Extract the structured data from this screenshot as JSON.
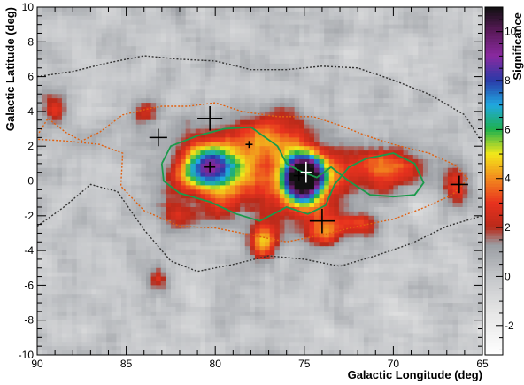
{
  "chart_data": {
    "type": "heatmap",
    "title": "",
    "xlabel": "Galactic Longitude (deg)",
    "ylabel": "Galactic Latitude (deg)",
    "colorbar_label": "Significance",
    "x_axis": {
      "min": 65,
      "max": 90,
      "reversed": true,
      "major_ticks": [
        90,
        85,
        80,
        75,
        70,
        65
      ],
      "tick_labels": [
        "90",
        "85",
        "80",
        "75",
        "70",
        "65"
      ]
    },
    "y_axis": {
      "min": -10,
      "max": 10,
      "major_ticks": [
        -10,
        -8,
        -6,
        -4,
        -2,
        0,
        2,
        4,
        6,
        8,
        10
      ],
      "tick_labels": [
        "-10",
        "-8",
        "-6",
        "-4",
        "-2",
        "0",
        "2",
        "4",
        "6",
        "8",
        "10"
      ]
    },
    "colorbar": {
      "min": -3.2,
      "max": 11,
      "ticks": [
        -2,
        0,
        2,
        4,
        6,
        8,
        10
      ],
      "tick_labels": [
        "-2",
        "0",
        "2",
        "4",
        "6",
        "8",
        "10"
      ]
    },
    "colormap_stops": [
      {
        "v": -3.2,
        "color": "#ffffff"
      },
      {
        "v": -1.5,
        "color": "#e6e6e6"
      },
      {
        "v": 0.0,
        "color": "#c4c6c9"
      },
      {
        "v": 1.3,
        "color": "#9a9da2"
      },
      {
        "v": 2.0,
        "color": "#b82a1a"
      },
      {
        "v": 3.0,
        "color": "#e8321e"
      },
      {
        "v": 4.0,
        "color": "#f28a1e"
      },
      {
        "v": 5.0,
        "color": "#f3e81a"
      },
      {
        "v": 6.0,
        "color": "#1fb14e"
      },
      {
        "v": 7.0,
        "color": "#20a8e0"
      },
      {
        "v": 8.0,
        "color": "#2a3aa8"
      },
      {
        "v": 9.0,
        "color": "#8a2aa0"
      },
      {
        "v": 10.0,
        "color": "#5a1a5a"
      },
      {
        "v": 11.0,
        "color": "#101010"
      }
    ],
    "sources": [
      {
        "name": "central",
        "l": 75.0,
        "b": 0.2,
        "peak": 10.8,
        "sigma_l": 0.75,
        "sigma_b": 0.9
      },
      {
        "name": "central-halo",
        "l": 75.2,
        "b": -0.2,
        "peak": 3.5,
        "sigma_l": 2.2,
        "sigma_b": 1.8
      },
      {
        "name": "west",
        "l": 80.3,
        "b": 0.8,
        "peak": 6.0,
        "sigma_l": 1.1,
        "sigma_b": 0.9
      },
      {
        "name": "west-halo",
        "l": 80.0,
        "b": 0.5,
        "peak": 3.0,
        "sigma_l": 2.0,
        "sigma_b": 1.7
      },
      {
        "name": "north-arm",
        "l": 77.0,
        "b": 2.5,
        "peak": 3.0,
        "sigma_l": 1.2,
        "sigma_b": 1.0
      },
      {
        "name": "east",
        "l": 70.2,
        "b": 0.8,
        "peak": 3.4,
        "sigma_l": 1.6,
        "sigma_b": 0.9
      },
      {
        "name": "south-spur",
        "l": 77.3,
        "b": -3.5,
        "peak": 4.0,
        "sigma_l": 0.55,
        "sigma_b": 0.8
      },
      {
        "name": "south-east",
        "l": 74.0,
        "b": -3.0,
        "peak": 3.0,
        "sigma_l": 0.7,
        "sigma_b": 0.6
      },
      {
        "name": "far-east",
        "l": 66.5,
        "b": -0.3,
        "peak": 3.0,
        "sigma_l": 0.6,
        "sigma_b": 0.8
      },
      {
        "name": "far-west",
        "l": 89.0,
        "b": 4.2,
        "peak": 2.8,
        "sigma_l": 0.5,
        "sigma_b": 0.7
      },
      {
        "name": "north-west",
        "l": 84.0,
        "b": 4.0,
        "peak": 2.5,
        "sigma_l": 0.5,
        "sigma_b": 0.5
      },
      {
        "name": "south-west",
        "l": 83.2,
        "b": -5.5,
        "peak": 2.5,
        "sigma_l": 0.4,
        "sigma_b": 0.5
      },
      {
        "name": "east-low",
        "l": 72.0,
        "b": -2.5,
        "peak": 2.6,
        "sigma_l": 0.9,
        "sigma_b": 0.5
      },
      {
        "name": "west-low",
        "l": 82.0,
        "b": -2.0,
        "peak": 2.4,
        "sigma_l": 0.8,
        "sigma_b": 0.5
      }
    ],
    "crosses": [
      {
        "l": 80.3,
        "b": 3.6,
        "dl": 0.7,
        "db": 0.7,
        "color": "#000000"
      },
      {
        "l": 83.2,
        "b": 2.5,
        "dl": 0.5,
        "db": 0.5,
        "color": "#000000"
      },
      {
        "l": 78.1,
        "b": 2.1,
        "dl": 0.2,
        "db": 0.2,
        "color": "#000000"
      },
      {
        "l": 80.3,
        "b": 0.8,
        "dl": 0.3,
        "db": 0.3,
        "color": "#000000"
      },
      {
        "l": 74.9,
        "b": 0.5,
        "dl": 0.3,
        "db": 0.6,
        "color": "#ffffff"
      },
      {
        "l": 75.3,
        "b": 0.3,
        "dl": 0.3,
        "db": 0.3,
        "color": "#000000"
      },
      {
        "l": 74.0,
        "b": -2.3,
        "dl": 0.7,
        "db": 0.7,
        "color": "#000000"
      },
      {
        "l": 66.3,
        "b": -0.2,
        "dl": 0.5,
        "db": 0.5,
        "color": "#000000"
      }
    ],
    "contours": [
      {
        "name": "black-dotted-outer",
        "color": "#333333",
        "dash": "2,2",
        "points": [
          [
            90,
            6.0
          ],
          [
            88,
            6.3
          ],
          [
            86,
            6.8
          ],
          [
            84,
            7.2
          ],
          [
            82,
            7.0
          ],
          [
            80,
            6.9
          ],
          [
            78,
            6.4
          ],
          [
            76,
            6.4
          ],
          [
            74,
            6.6
          ],
          [
            72,
            6.5
          ],
          [
            70,
            5.8
          ],
          [
            68,
            5.0
          ],
          [
            66,
            3.8
          ],
          [
            65,
            2.2
          ]
        ]
      },
      {
        "name": "black-dotted-inner",
        "color": "#333333",
        "dash": "2,2",
        "points": [
          [
            90,
            -2.6
          ],
          [
            88.5,
            -1.5
          ],
          [
            87,
            -0.2
          ],
          [
            85.5,
            -0.6
          ],
          [
            84,
            -2.8
          ],
          [
            82.5,
            -4.6
          ],
          [
            81,
            -5.2
          ],
          [
            79,
            -4.8
          ],
          [
            77,
            -4.3
          ],
          [
            75,
            -4.5
          ],
          [
            73,
            -4.9
          ],
          [
            71,
            -4.3
          ],
          [
            69,
            -3.6
          ],
          [
            67,
            -2.6
          ],
          [
            65,
            -2.0
          ]
        ]
      },
      {
        "name": "orange-dotted",
        "color": "#e06010",
        "dash": "2,2",
        "points": [
          [
            90,
            2.6
          ],
          [
            89.4,
            3.6
          ],
          [
            88.4,
            2.8
          ],
          [
            87.5,
            2.3
          ],
          [
            86.5,
            2.8
          ],
          [
            85.2,
            3.8
          ],
          [
            84.0,
            4.1
          ],
          [
            83.0,
            4.3
          ],
          [
            81.5,
            4.3
          ],
          [
            80.0,
            4.5
          ],
          [
            78.5,
            4.0
          ],
          [
            76.5,
            3.7
          ],
          [
            74.5,
            3.7
          ],
          [
            73.0,
            3.2
          ],
          [
            71.5,
            2.6
          ],
          [
            70.0,
            2.1
          ],
          [
            68.0,
            1.6
          ],
          [
            66.5,
            0.9
          ],
          [
            65.8,
            0.1
          ],
          [
            66.7,
            -0.8
          ],
          [
            68.2,
            -1.5
          ],
          [
            70.0,
            -2.2
          ],
          [
            72.0,
            -2.6
          ],
          [
            74.0,
            -3.1
          ],
          [
            76.0,
            -3.5
          ],
          [
            78.0,
            -3.1
          ],
          [
            80.0,
            -2.7
          ],
          [
            82.0,
            -2.6
          ],
          [
            84.0,
            -1.7
          ],
          [
            85.3,
            -0.3
          ],
          [
            85.2,
            1.6
          ],
          [
            86.5,
            2.1
          ],
          [
            88.4,
            2.3
          ],
          [
            90,
            2.4
          ]
        ]
      },
      {
        "name": "green-solid",
        "color": "#1a9a4a",
        "dash": "",
        "points": [
          [
            83.0,
            1.0
          ],
          [
            82.5,
            2.0
          ],
          [
            81.0,
            2.6
          ],
          [
            79.5,
            3.0
          ],
          [
            78.0,
            3.1
          ],
          [
            76.5,
            2.0
          ],
          [
            76.0,
            1.0
          ],
          [
            75.3,
            0.6
          ],
          [
            74.3,
            0.2
          ],
          [
            73.5,
            0.8
          ],
          [
            72.5,
            0.0
          ],
          [
            71.3,
            -0.8
          ],
          [
            70.0,
            -0.9
          ],
          [
            68.8,
            -0.8
          ],
          [
            68.3,
            -0.1
          ],
          [
            68.8,
            1.0
          ],
          [
            70.0,
            1.6
          ],
          [
            71.5,
            1.3
          ],
          [
            72.5,
            0.8
          ],
          [
            73.3,
            -0.2
          ],
          [
            73.8,
            -1.4
          ],
          [
            74.8,
            -1.9
          ],
          [
            76.0,
            -1.5
          ],
          [
            77.5,
            -2.3
          ],
          [
            78.8,
            -1.9
          ],
          [
            80.3,
            -1.2
          ],
          [
            82.0,
            -0.7
          ],
          [
            82.9,
            0.0
          ],
          [
            83.0,
            1.0
          ]
        ]
      }
    ]
  }
}
